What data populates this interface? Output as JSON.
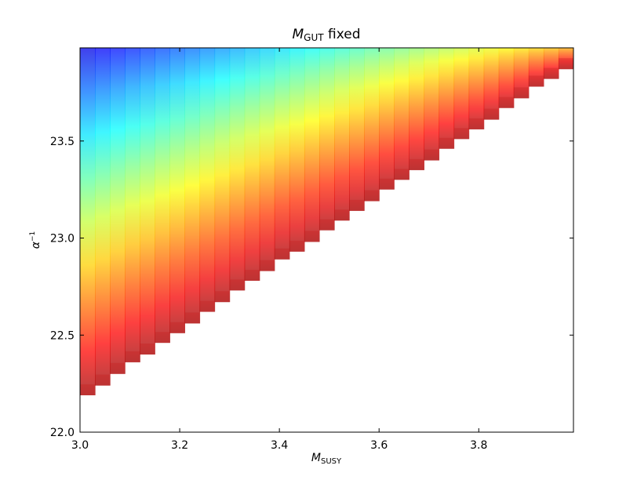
{
  "chart_data": {
    "type": "heatmap",
    "title": {
      "main": "M",
      "sub": "GUT",
      "suffix": " fixed"
    },
    "xlabel": {
      "main": "M",
      "sub": "SUSY"
    },
    "ylabel": {
      "main": "α",
      "sup": "−1"
    },
    "xlim": [
      3.0,
      3.99
    ],
    "ylim": [
      22.0,
      23.98
    ],
    "xticks": [
      3.0,
      3.2,
      3.4,
      3.6,
      3.8
    ],
    "xtick_labels": [
      "3.0",
      "3.2",
      "3.4",
      "3.6",
      "3.8"
    ],
    "yticks": [
      22.0,
      22.5,
      23.0,
      23.5
    ],
    "ytick_labels": [
      "22.0",
      "22.5",
      "23.0",
      "23.5"
    ],
    "colormap": "jet",
    "alpha": 0.75,
    "column_width": 0.03,
    "columns_x": [
      3.0,
      3.03,
      3.06,
      3.09,
      3.12,
      3.15,
      3.18,
      3.21,
      3.24,
      3.27,
      3.3,
      3.33,
      3.36,
      3.39,
      3.42,
      3.45,
      3.48,
      3.51,
      3.54,
      3.57,
      3.6,
      3.63,
      3.66,
      3.69,
      3.72,
      3.75,
      3.78,
      3.81,
      3.84,
      3.87,
      3.9,
      3.93,
      3.96
    ],
    "lower_boundary": [
      22.19,
      22.24,
      22.3,
      22.36,
      22.4,
      22.46,
      22.51,
      22.56,
      22.62,
      22.67,
      22.73,
      22.78,
      22.83,
      22.89,
      22.93,
      22.98,
      23.04,
      23.09,
      23.14,
      23.19,
      23.25,
      23.3,
      23.35,
      23.4,
      23.46,
      23.51,
      23.56,
      23.61,
      23.67,
      23.72,
      23.78,
      23.82,
      23.87
    ],
    "grid": false,
    "grid_note": "colour encodes a scalar value from red (near lower boundary) to blue (top-left); no colorbar shown"
  }
}
